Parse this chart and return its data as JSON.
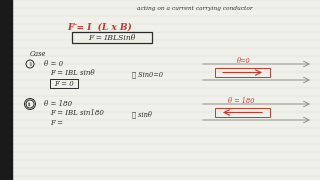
{
  "bg_color": "#f0f0ea",
  "title_text": "acting on a current carrying conductor",
  "formula_red": "F = I  (L x B)",
  "boxed_formula": "F = IBLSinθ",
  "case_label": "Case",
  "case1_cond": "θ = 0",
  "case1_eq1": "F = IBL sinθ",
  "case1_eq2": "F = 0",
  "case1_dot": "∴ Sin0=0",
  "case1_angle": "θ=0",
  "case2_cond": "θ = 180",
  "case2_eq1": "F = IBL sin180",
  "case2_dot": "∴ sinθ",
  "case2_angle": "θ = 180",
  "case2_eq2": "F =",
  "red_color": "#c0392b",
  "black_color": "#2a2a2a",
  "gray_color": "#999999",
  "line_paper_color": "#d8d8ce",
  "arrow_gray": "#909090"
}
